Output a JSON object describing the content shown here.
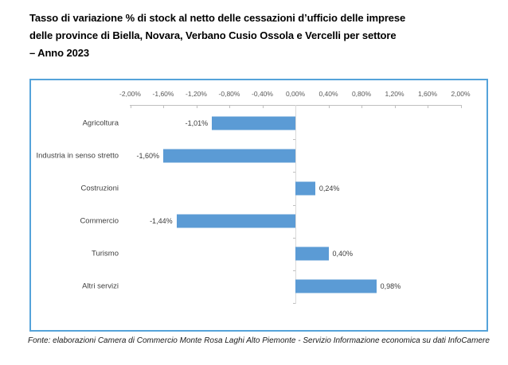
{
  "title": {
    "lines": [
      "Tasso di variazione % di stock al netto delle cessazioni d’ufficio delle imprese",
      "delle province di Biella, Novara, Verbano Cusio Ossola e Vercelli per settore",
      "– Anno 2023"
    ],
    "full": "Tasso di variazione % di stock al netto delle cessazioni d’ufficio delle imprese delle province di Biella, Novara, Verbano Cusio Ossola e Vercelli per settore – Anno 2023"
  },
  "source": {
    "text": "Fonte: elaborazioni Camera di Commercio Monte Rosa Laghi Alto Piemonte - Servizio Informazione economica su dati InfoCamere"
  },
  "colors": {
    "bar": "#5B9BD5",
    "box_border": "#55A3DA",
    "axis_line": "#BFBFBF",
    "zero_line": "#D9D9D9",
    "tick_label": "#595959",
    "category_label": "#404040",
    "value_label": "#3b3b3b"
  },
  "chart_data": {
    "type": "bar",
    "orientation": "horizontal",
    "title": "Tasso di variazione % di stock al netto delle cessazioni d’ufficio delle imprese delle province di Biella, Novara, Verbano Cusio Ossola e Vercelli per settore – Anno 2023",
    "categories": [
      "Agricoltura",
      "Industria in senso stretto",
      "Costruzioni",
      "Commercio",
      "Turismo",
      "Altri servizi"
    ],
    "values": [
      -1.01,
      -1.6,
      0.24,
      -1.44,
      0.4,
      0.98
    ],
    "value_labels": [
      "-1,01%",
      "-1,60%",
      "0,24%",
      "-1,44%",
      "0,40%",
      "0,98%"
    ],
    "xlim": [
      -2.0,
      2.0
    ],
    "x_ticks": [
      -2.0,
      -1.6,
      -1.2,
      -0.8,
      -0.4,
      0.0,
      0.4,
      0.8,
      1.2,
      1.6,
      2.0
    ],
    "x_tick_labels": [
      "-2,00%",
      "-1,60%",
      "-1,20%",
      "-0,80%",
      "-0,40%",
      "0,00%",
      "0,40%",
      "0,80%",
      "1,20%",
      "1,60%",
      "2,00%"
    ],
    "grid": false,
    "legend": false,
    "value_axis_position": "top",
    "data_labels": "outside-end"
  }
}
